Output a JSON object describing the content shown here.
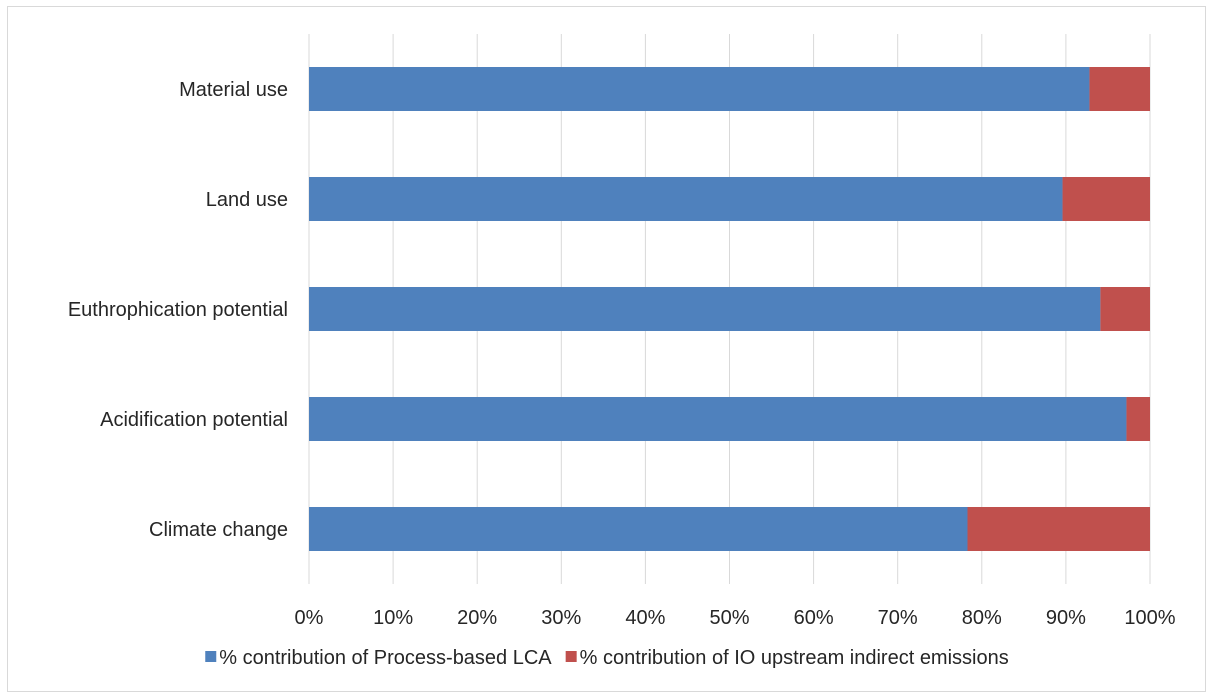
{
  "chart_data": {
    "type": "bar",
    "orientation": "horizontal",
    "stacked": true,
    "percent_stacked": true,
    "categories": [
      "Climate change",
      "Acidification potential",
      "Euthrophication potential",
      "Land use",
      "Material use"
    ],
    "series": [
      {
        "name": "% contribution of Process-based LCA",
        "color": "#4f81bd",
        "values": [
          0.783,
          0.972,
          0.941,
          0.896,
          0.928
        ]
      },
      {
        "name": "% contribution of IO upstream indirect emissions",
        "color": "#c0504d",
        "values": [
          0.217,
          0.028,
          0.059,
          0.104,
          0.072
        ]
      }
    ],
    "x_ticks": [
      "0%",
      "10%",
      "20%",
      "30%",
      "40%",
      "50%",
      "60%",
      "70%",
      "80%",
      "90%",
      "100%"
    ],
    "xlim": [
      0,
      1
    ],
    "title": "",
    "xlabel": "",
    "ylabel": "",
    "grid": "vertical",
    "legend": "bottom"
  }
}
